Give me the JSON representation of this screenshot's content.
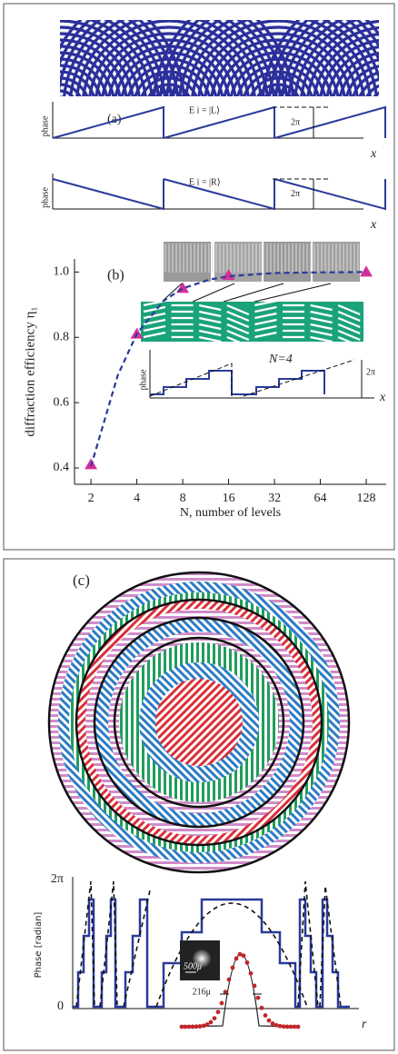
{
  "panel_a": {
    "label": "(a)",
    "rows": [
      {
        "ylabel": "phase",
        "state": "E i = |L⟩",
        "period": "2π",
        "xlabel": "x"
      },
      {
        "ylabel": "phase",
        "state": "E i = |R⟩",
        "period": "2π",
        "xlabel": "x"
      }
    ]
  },
  "chart_data": [
    {
      "type": "scatter",
      "label": "(b)",
      "xlabel": "N, number of levels",
      "ylabel": "diffraction efficiency η₁",
      "log_x": true,
      "xlim": [
        1.56,
        173
      ],
      "ylim": [
        0.35,
        1.04
      ],
      "xticks": [
        2,
        4,
        8,
        16,
        32,
        64,
        128
      ],
      "yticks": [
        0.4,
        0.6,
        0.8,
        {
          "value": 1,
          "label": "1.0"
        }
      ],
      "series": [
        {
          "style": "markers",
          "color": "#d6309a",
          "x": [
            2,
            4,
            8,
            16,
            128
          ],
          "values": [
            0.41,
            0.81,
            0.95,
            0.99,
            1.0
          ]
        },
        {
          "style": "dashed",
          "color": "#2a3a9a",
          "x": [
            2,
            3,
            4,
            6,
            8,
            12,
            16,
            32,
            64,
            128
          ],
          "values": [
            0.405,
            0.684,
            0.811,
            0.912,
            0.95,
            0.977,
            0.987,
            0.997,
            0.999,
            1.0
          ]
        }
      ]
    }
  ],
  "inset_b": {
    "ylabel": "phase",
    "levels": "N=4",
    "period": "2π",
    "xlabel": "x"
  },
  "panel_c": {
    "label": "(c)",
    "ytop": "2π",
    "yzero": "0",
    "ylabel": "Phase [radian]",
    "xlabel": "r",
    "scale": "500μ",
    "width": "216μ"
  }
}
